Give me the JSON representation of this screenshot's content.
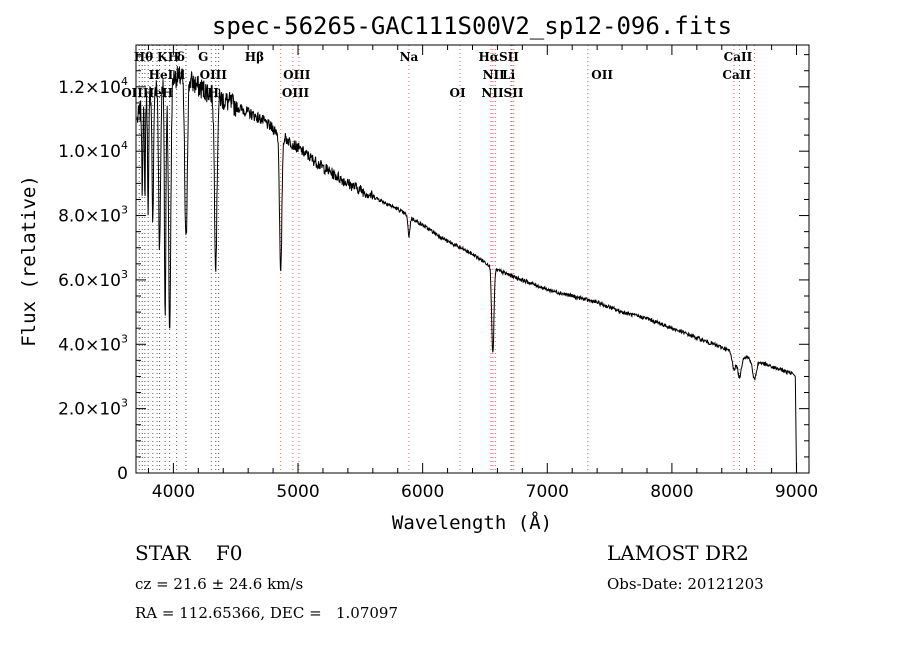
{
  "chart_data": {
    "type": "line",
    "title": "spec-56265-GAC111S00V2_sp12-096.fits",
    "xlabel": "Wavelength (Å)",
    "ylabel": "Flux (relative)",
    "xlim": [
      3700,
      9100
    ],
    "ylim": [
      0,
      13300
    ],
    "x_ticks": [
      4000,
      5000,
      6000,
      7000,
      8000,
      9000
    ],
    "x_tick_labels": [
      "4000",
      "5000",
      "6000",
      "7000",
      "8000",
      "9000"
    ],
    "y_ticks": [
      0,
      2000,
      4000,
      6000,
      8000,
      10000,
      12000
    ],
    "y_tick_labels": [
      {
        "mantissa": "0",
        "exp": ""
      },
      {
        "mantissa": "2.0×10",
        "exp": "3"
      },
      {
        "mantissa": "4.0×10",
        "exp": "3"
      },
      {
        "mantissa": "6.0×10",
        "exp": "3"
      },
      {
        "mantissa": "8.0×10",
        "exp": "3"
      },
      {
        "mantissa": "1.0×10",
        "exp": "4"
      },
      {
        "mantissa": "1.2×10",
        "exp": "4"
      }
    ],
    "series": [
      {
        "continuum": [
          [
            3710,
            11000
          ],
          [
            3800,
            11800
          ],
          [
            3900,
            12100
          ],
          [
            4000,
            12300
          ],
          [
            4100,
            12300
          ],
          [
            4200,
            12000
          ],
          [
            4300,
            11800
          ],
          [
            4400,
            11600
          ],
          [
            4500,
            11400
          ],
          [
            4600,
            11200
          ],
          [
            4700,
            11000
          ],
          [
            4800,
            10700
          ],
          [
            4900,
            10400
          ],
          [
            5000,
            10100
          ],
          [
            5200,
            9500
          ],
          [
            5400,
            9000
          ],
          [
            5600,
            8600
          ],
          [
            5800,
            8200
          ],
          [
            6000,
            7700
          ],
          [
            6200,
            7200
          ],
          [
            6400,
            6800
          ],
          [
            6600,
            6300
          ],
          [
            6800,
            6000
          ],
          [
            7000,
            5700
          ],
          [
            7200,
            5500
          ],
          [
            7400,
            5300
          ],
          [
            7600,
            5000
          ],
          [
            7800,
            4800
          ],
          [
            8000,
            4500
          ],
          [
            8200,
            4200
          ],
          [
            8400,
            3900
          ],
          [
            8600,
            3600
          ],
          [
            8800,
            3300
          ],
          [
            8960,
            3100
          ]
        ],
        "absorption_lines": [
          {
            "center": 3750,
            "depth": 2500,
            "width": 4
          },
          {
            "center": 3771,
            "depth": 3000,
            "width": 4
          },
          {
            "center": 3798,
            "depth": 3500,
            "width": 5
          },
          {
            "center": 3835,
            "depth": 4200,
            "width": 6
          },
          {
            "center": 3889,
            "depth": 5000,
            "width": 8
          },
          {
            "center": 3934,
            "depth": 7300,
            "width": 6
          },
          {
            "center": 3970,
            "depth": 7800,
            "width": 9
          },
          {
            "center": 4101,
            "depth": 5200,
            "width": 10
          },
          {
            "center": 4340,
            "depth": 5200,
            "width": 10
          },
          {
            "center": 4861,
            "depth": 4400,
            "width": 9
          },
          {
            "center": 5890,
            "depth": 600,
            "width": 8
          },
          {
            "center": 6563,
            "depth": 2700,
            "width": 9
          },
          {
            "center": 8498,
            "depth": 500,
            "width": 15
          },
          {
            "center": 8542,
            "depth": 700,
            "width": 15
          },
          {
            "center": 8662,
            "depth": 600,
            "width": 15
          }
        ],
        "cutoff": [
          [
            8990,
            3000
          ],
          [
            9000,
            0
          ]
        ]
      }
    ],
    "reference_lines": [
      {
        "wavelength": 3726,
        "color": "#555555"
      },
      {
        "wavelength": 3750,
        "color": "#555555"
      },
      {
        "wavelength": 3771,
        "color": "#555555"
      },
      {
        "wavelength": 3798,
        "color": "#555555"
      },
      {
        "wavelength": 3835,
        "color": "#555555"
      },
      {
        "wavelength": 3869,
        "color": "#555555"
      },
      {
        "wavelength": 3889,
        "color": "#555555"
      },
      {
        "wavelength": 3934,
        "color": "#555555"
      },
      {
        "wavelength": 3970,
        "color": "#555555"
      },
      {
        "wavelength": 4026,
        "color": "#555555"
      },
      {
        "wavelength": 4101,
        "color": "#555555"
      },
      {
        "wavelength": 4304,
        "color": "#555555"
      },
      {
        "wavelength": 4340,
        "color": "#555555"
      },
      {
        "wavelength": 4363,
        "color": "#555555"
      },
      {
        "wavelength": 4861,
        "color": "#e06060"
      },
      {
        "wavelength": 4959,
        "color": "#e06060"
      },
      {
        "wavelength": 5007,
        "color": "#e06060"
      },
      {
        "wavelength": 5890,
        "color": "#e06060"
      },
      {
        "wavelength": 6300,
        "color": "#e06060"
      },
      {
        "wavelength": 6548,
        "color": "#e06060"
      },
      {
        "wavelength": 6563,
        "color": "#e06060"
      },
      {
        "wavelength": 6583,
        "color": "#e06060"
      },
      {
        "wavelength": 6708,
        "color": "#e06060"
      },
      {
        "wavelength": 6717,
        "color": "#e06060"
      },
      {
        "wavelength": 6731,
        "color": "#e06060"
      },
      {
        "wavelength": 7325,
        "color": "#e06060"
      },
      {
        "wavelength": 8498,
        "color": "#e06060"
      },
      {
        "wavelength": 8542,
        "color": "#e06060"
      },
      {
        "wavelength": 8662,
        "color": "#e06060"
      }
    ],
    "line_labels": [
      {
        "row": 1,
        "wavelength": 3760,
        "text": "Hθ"
      },
      {
        "row": 1,
        "wavelength": 3910,
        "text": "K"
      },
      {
        "row": 1,
        "wavelength": 4000,
        "text": "H"
      },
      {
        "row": 1,
        "wavelength": 4060,
        "text": "δ"
      },
      {
        "row": 1,
        "wavelength": 4240,
        "text": "G"
      },
      {
        "row": 1,
        "wavelength": 4650,
        "text": "Hβ"
      },
      {
        "row": 1,
        "wavelength": 5890,
        "text": "Na"
      },
      {
        "row": 1,
        "wavelength": 6610,
        "text": "HαSII"
      },
      {
        "row": 1,
        "wavelength": 8530,
        "text": "CaII"
      },
      {
        "row": 2,
        "wavelength": 3900,
        "text": "HeI"
      },
      {
        "row": 2,
        "wavelength": 4060,
        "text": "d"
      },
      {
        "row": 2,
        "wavelength": 4320,
        "text": "OIII"
      },
      {
        "row": 2,
        "wavelength": 4990,
        "text": "OIII"
      },
      {
        "row": 2,
        "wavelength": 6570,
        "text": "NII"
      },
      {
        "row": 2,
        "wavelength": 6690,
        "text": "Li"
      },
      {
        "row": 2,
        "wavelength": 7440,
        "text": "OII"
      },
      {
        "row": 2,
        "wavelength": 8520,
        "text": "CaII"
      },
      {
        "row": 3,
        "wavelength": 3790,
        "text": "OIIHeH"
      },
      {
        "row": 3,
        "wavelength": 4320,
        "text": "H"
      },
      {
        "row": 3,
        "wavelength": 4980,
        "text": "OIII"
      },
      {
        "row": 3,
        "wavelength": 6280,
        "text": "OI"
      },
      {
        "row": 3,
        "wavelength": 6640,
        "text": "NIISII"
      }
    ]
  },
  "info": {
    "object_line": "STAR    F0",
    "cz_line": "cz = 21.6 ± 24.6 km/s",
    "radec_line": "RA = 112.65366, DEC =   1.07097",
    "survey": "LAMOST DR2",
    "obs_date": "Obs-Date: 20121203"
  }
}
